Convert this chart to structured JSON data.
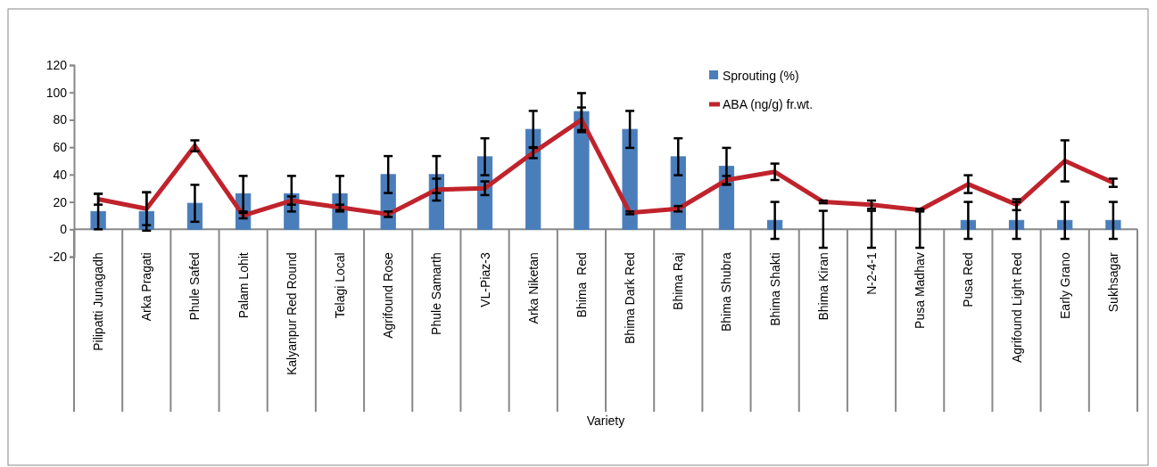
{
  "chart_data": {
    "type": "bar",
    "xlabel": "Variety",
    "categories": [
      "Pilipatti Junagadh",
      "Arka Pragati",
      "Phule Safed",
      "Palam Lohit",
      "Kalyanpur Red Round",
      "Telagi Local",
      "Agrifound Rose",
      "Phule Samarth",
      "VL-Piaz-3",
      "Arka Niketan",
      "Bhima  Red",
      "Bhima Dark Red",
      "Bhima Raj",
      "Bhima Shubra",
      "Bhima Shakti",
      "Bhima Kiran",
      "N-2-4-1",
      "Pusa Madhav",
      "Pusa Red",
      "Agrifound Light Red",
      "Early Grano",
      "Sukhsagar"
    ],
    "series": [
      {
        "name": "Sprouting (%)",
        "color": "#4a7ebb",
        "values": [
          13,
          13,
          19,
          26,
          26,
          26,
          40,
          40,
          53,
          73,
          86,
          73,
          53,
          46,
          6.5,
          0,
          0,
          0,
          6.5,
          6.5,
          6.5,
          6.5
        ],
        "errors": [
          13,
          14,
          13.5,
          13,
          13,
          13,
          13.5,
          13.5,
          13.5,
          13.5,
          13.5,
          13.5,
          13.5,
          13.5,
          13.5,
          13.5,
          13.5,
          13.5,
          13.5,
          13.5,
          13.5,
          13.5
        ]
      },
      {
        "name": "ABA (ng/g) fr.wt.",
        "type": "line",
        "color": "#c0232c",
        "values": [
          22,
          15,
          61,
          10,
          21,
          16,
          11,
          29,
          30,
          56,
          80,
          12,
          15,
          36,
          42,
          20,
          18,
          14,
          33,
          18,
          50,
          34
        ],
        "errors": [
          4,
          12,
          4,
          2,
          3,
          2,
          2,
          8,
          5,
          4,
          9,
          1,
          2,
          3,
          6,
          1,
          3,
          1,
          6.5,
          4,
          15,
          3
        ]
      }
    ],
    "ylim": [
      -20,
      120
    ],
    "yticks": [
      -20,
      0,
      20,
      40,
      60,
      80,
      100,
      120
    ],
    "grid": false,
    "legend": "top right",
    "line_style": "solid",
    "marker": "none"
  }
}
